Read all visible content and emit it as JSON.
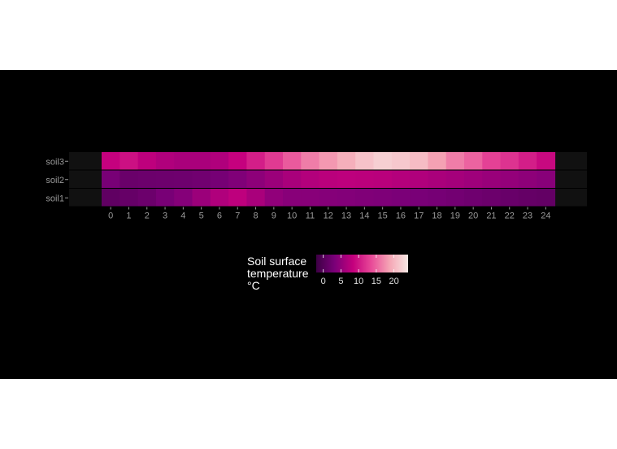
{
  "chart_data": {
    "type": "heatmap",
    "xlabel": "",
    "ylabel": "",
    "x": [
      0,
      1,
      2,
      3,
      4,
      5,
      6,
      7,
      8,
      9,
      10,
      11,
      12,
      13,
      14,
      15,
      16,
      17,
      18,
      19,
      20,
      21,
      22,
      23,
      24
    ],
    "x_ticks": [
      "0",
      "1",
      "2",
      "3",
      "4",
      "5",
      "6",
      "7",
      "8",
      "9",
      "10",
      "11",
      "12",
      "13",
      "14",
      "15",
      "16",
      "17",
      "18",
      "19",
      "20",
      "21",
      "22",
      "23",
      "24"
    ],
    "y": [
      "soil1",
      "soil2",
      "soil3"
    ],
    "series": [
      {
        "name": "soil3",
        "values": [
          8.5,
          9.5,
          8.0,
          7.0,
          6.5,
          6.5,
          7.0,
          8.5,
          10.5,
          12.5,
          14.5,
          16.5,
          18.0,
          19.5,
          21.0,
          22.0,
          21.5,
          20.5,
          18.5,
          16.5,
          15.0,
          13.0,
          12.0,
          10.5,
          9.0
        ]
      },
      {
        "name": "soil2",
        "values": [
          3.0,
          1.8,
          2.0,
          2.1,
          2.2,
          2.4,
          2.9,
          3.6,
          4.5,
          5.5,
          6.5,
          7.2,
          7.7,
          7.9,
          7.8,
          7.6,
          7.3,
          7.0,
          6.6,
          6.2,
          5.8,
          5.4,
          5.0,
          4.6,
          4.2
        ]
      },
      {
        "name": "soil1",
        "values": [
          1.0,
          1.5,
          2.0,
          3.0,
          4.0,
          5.5,
          7.0,
          8.0,
          6.5,
          4.8,
          4.2,
          4.2,
          4.0,
          3.8,
          3.6,
          3.5,
          3.3,
          3.1,
          2.9,
          2.6,
          2.3,
          2.0,
          1.7,
          1.4,
          1.2
        ]
      }
    ],
    "legend": {
      "title_lines": [
        "Soil surface",
        "temperature",
        "°C"
      ],
      "ticks": [
        0,
        5,
        10,
        15,
        20
      ],
      "range": [
        -2,
        24
      ],
      "placement": "bottom"
    },
    "colors": {
      "panel_background": "#000000",
      "band_background": "#111111",
      "axis_text": "#999999",
      "legend_text": "#ffffff",
      "scale": [
        "#3d0045",
        "#7a0078",
        "#c4007d",
        "#e84a98",
        "#f5a6b5",
        "#f7e8e4"
      ]
    }
  }
}
